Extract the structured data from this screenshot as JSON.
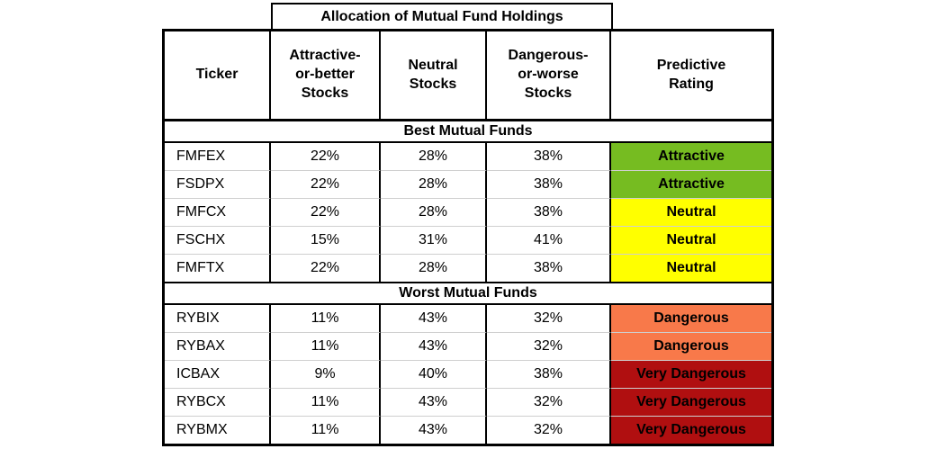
{
  "chart_data": {
    "type": "table",
    "title": "Allocation of Mutual Fund Holdings",
    "headers": {
      "ticker": "Ticker",
      "attractive": "Attractive-\nor-better\nStocks",
      "neutral": "Neutral\nStocks",
      "dangerous": "Dangerous-\nor-worse\nStocks",
      "rating": "Predictive\nRating"
    },
    "rating_colors": {
      "attractive": "#76BC21",
      "neutral": "#FFFF00",
      "dangerous": "#F8794A",
      "very_dangerous": "#B00F10"
    },
    "sections": [
      {
        "label": "Best Mutual Funds",
        "rows": [
          {
            "ticker": "FMFEX",
            "attractive_pct": "22%",
            "neutral_pct": "28%",
            "dangerous_pct": "38%",
            "rating": "Attractive",
            "rating_color": "#76BC21"
          },
          {
            "ticker": "FSDPX",
            "attractive_pct": "22%",
            "neutral_pct": "28%",
            "dangerous_pct": "38%",
            "rating": "Attractive",
            "rating_color": "#76BC21"
          },
          {
            "ticker": "FMFCX",
            "attractive_pct": "22%",
            "neutral_pct": "28%",
            "dangerous_pct": "38%",
            "rating": "Neutral",
            "rating_color": "#FFFF00"
          },
          {
            "ticker": "FSCHX",
            "attractive_pct": "15%",
            "neutral_pct": "31%",
            "dangerous_pct": "41%",
            "rating": "Neutral",
            "rating_color": "#FFFF00"
          },
          {
            "ticker": "FMFTX",
            "attractive_pct": "22%",
            "neutral_pct": "28%",
            "dangerous_pct": "38%",
            "rating": "Neutral",
            "rating_color": "#FFFF00"
          }
        ]
      },
      {
        "label": "Worst Mutual Funds",
        "rows": [
          {
            "ticker": "RYBIX",
            "attractive_pct": "11%",
            "neutral_pct": "43%",
            "dangerous_pct": "32%",
            "rating": "Dangerous",
            "rating_color": "#F8794A"
          },
          {
            "ticker": "RYBAX",
            "attractive_pct": "11%",
            "neutral_pct": "43%",
            "dangerous_pct": "32%",
            "rating": "Dangerous",
            "rating_color": "#F8794A"
          },
          {
            "ticker": "ICBAX",
            "attractive_pct": "9%",
            "neutral_pct": "40%",
            "dangerous_pct": "38%",
            "rating": "Very Dangerous",
            "rating_color": "#B00F10"
          },
          {
            "ticker": "RYBCX",
            "attractive_pct": "11%",
            "neutral_pct": "43%",
            "dangerous_pct": "32%",
            "rating": "Very Dangerous",
            "rating_color": "#B00F10"
          },
          {
            "ticker": "RYBMX",
            "attractive_pct": "11%",
            "neutral_pct": "43%",
            "dangerous_pct": "32%",
            "rating": "Very Dangerous",
            "rating_color": "#B00F10"
          }
        ]
      }
    ]
  }
}
